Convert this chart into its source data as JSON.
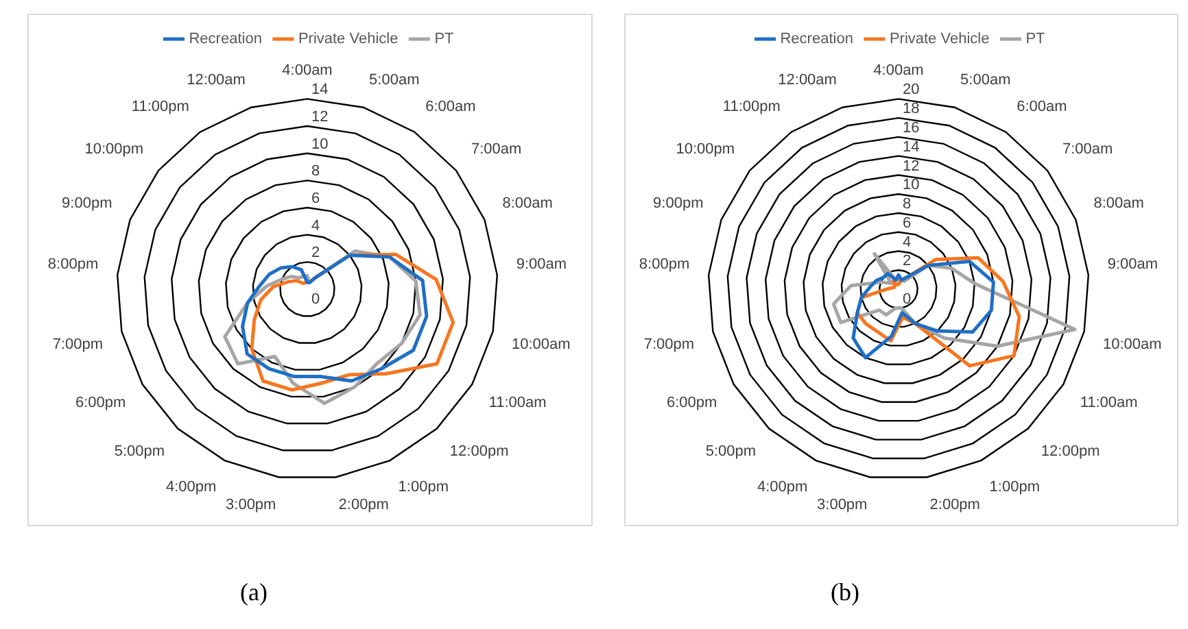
{
  "chart_data": [
    {
      "type": "radar",
      "categories": [
        "4:00am",
        "5:00am",
        "6:00am",
        "7:00am",
        "8:00am",
        "9:00am",
        "10:00am",
        "11:00am",
        "12:00pm",
        "1:00pm",
        "2:00pm",
        "3:00pm",
        "4:00pm",
        "5:00pm",
        "6:00pm",
        "7:00pm",
        "8:00pm",
        "9:00pm",
        "10:00pm",
        "11:00pm",
        "12:00am"
      ],
      "series": [
        {
          "name": "Recreation",
          "color": "#1f6fc5",
          "values": [
            0.5,
            0.5,
            1,
            4,
            6.5,
            8.5,
            9,
            9,
            8,
            7.5,
            6.5,
            6.5,
            6.5,
            6.5,
            5.5,
            4.5,
            3.5,
            3,
            2.5,
            2,
            1.5
          ]
        },
        {
          "name": "Private Vehicle",
          "color": "#f7761f",
          "values": [
            0.5,
            0.5,
            1,
            4,
            7,
            9.5,
            11,
            11,
            8.5,
            7,
            7,
            7.5,
            7.5,
            6,
            4.5,
            3.5,
            2.5,
            1.5,
            1,
            0.5,
            0.5
          ]
        },
        {
          "name": "PT",
          "color": "#a5a5a5",
          "values": [
            1,
            0.5,
            1,
            4.5,
            6.5,
            8,
            8.5,
            8,
            7.5,
            8,
            8.5,
            7,
            5.5,
            7.5,
            7,
            4.5,
            3,
            2,
            1.5,
            1,
            1
          ]
        }
      ],
      "ylim": [
        0,
        14
      ],
      "yticks": [
        0,
        2,
        4,
        6,
        8,
        10,
        12,
        14
      ],
      "legend": "top",
      "marker": "none",
      "annotations": [
        "(a)"
      ]
    },
    {
      "type": "radar",
      "categories": [
        "4:00am",
        "5:00am",
        "6:00am",
        "7:00am",
        "8:00am",
        "9:00am",
        "10:00am",
        "11:00am",
        "12:00pm",
        "1:00pm",
        "2:00pm",
        "3:00pm",
        "4:00pm",
        "5:00pm",
        "6:00pm",
        "7:00pm",
        "8:00pm",
        "9:00pm",
        "10:00pm",
        "11:00pm",
        "12:00am"
      ],
      "series": [
        {
          "name": "Recreation",
          "color": "#1f6fc5",
          "values": [
            1.5,
            1,
            1.5,
            4,
            8,
            10,
            10,
            9,
            6,
            4,
            2.5,
            5,
            8,
            7,
            5,
            4,
            3,
            2.5,
            2,
            2,
            1
          ]
        },
        {
          "name": "Private Vehicle",
          "color": "#f7761f",
          "values": [
            0.5,
            1,
            1.5,
            5,
            9,
            11,
            13,
            14,
            11,
            4,
            3,
            5.5,
            5,
            5,
            5,
            4,
            1,
            0.5,
            0.5,
            1,
            0.5
          ]
        },
        {
          "name": "PT",
          "color": "#a5a5a5",
          "values": [
            1,
            1,
            1,
            4,
            6,
            8,
            19,
            12,
            7,
            4,
            2,
            2,
            3,
            3,
            7,
            7,
            5,
            2,
            1,
            4.5,
            1
          ]
        }
      ],
      "ylim": [
        0,
        20
      ],
      "yticks": [
        0,
        2,
        4,
        6,
        8,
        10,
        12,
        14,
        16,
        18,
        20
      ],
      "legend": "top",
      "marker": "none",
      "annotations": [
        "(b)"
      ]
    }
  ]
}
